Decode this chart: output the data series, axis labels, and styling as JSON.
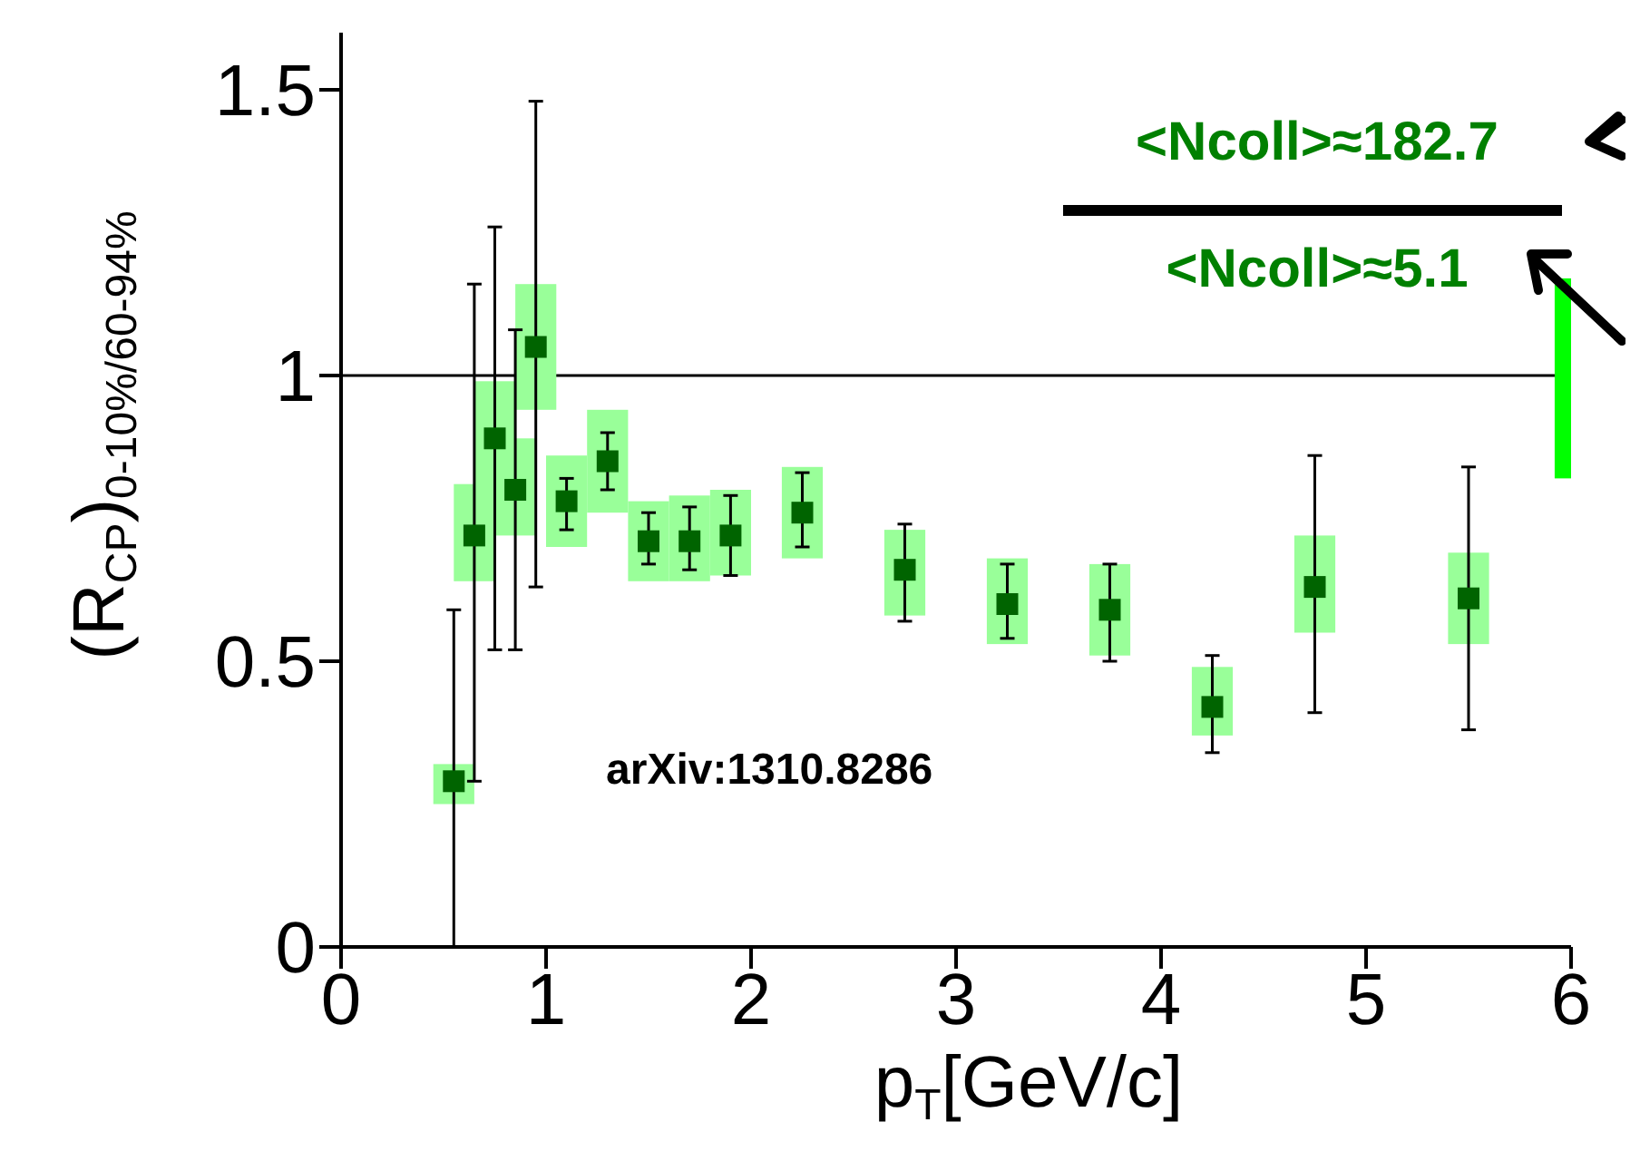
{
  "chart_data": {
    "type": "scatter",
    "xlabel": "p$_{T}$[GeV/c]",
    "ylabel": "(R$_{CP}$)$_{0-10%/60-94%}$",
    "x": [
      0.55,
      0.65,
      0.75,
      0.85,
      0.95,
      1.1,
      1.3,
      1.5,
      1.7,
      1.9,
      2.25,
      2.75,
      3.25,
      3.75,
      4.25,
      4.75,
      5.5
    ],
    "series": [
      {
        "type": "bar",
        "color": "#99ff99",
        "base": [
          0.25,
          0.64,
          0.8,
          0.72,
          0.94,
          0.7,
          0.76,
          0.64,
          0.64,
          0.65,
          0.68,
          0.58,
          0.53,
          0.51,
          0.37,
          0.55,
          0.53
        ],
        "values": [
          0.07,
          0.17,
          0.19,
          0.17,
          0.22,
          0.16,
          0.18,
          0.14,
          0.15,
          0.15,
          0.16,
          0.15,
          0.15,
          0.16,
          0.12,
          0.17,
          0.16
        ]
      },
      {
        "type": "bar",
        "color": "#00ff00",
        "x": [
          5.96
        ],
        "base": [
          0.82
        ],
        "values": [
          0.35
        ]
      },
      {
        "color": "#006400",
        "values": [
          0.29,
          0.72,
          0.89,
          0.8,
          1.05,
          0.78,
          0.85,
          0.71,
          0.71,
          0.72,
          0.76,
          0.66,
          0.6,
          0.59,
          0.42,
          0.63,
          0.61
        ],
        "errors": [
          [
            0,
            0.59
          ],
          [
            0.29,
            1.16
          ],
          [
            0.52,
            1.26
          ],
          [
            0.52,
            1.08
          ],
          [
            0.63,
            1.48
          ],
          [
            0.73,
            0.82
          ],
          [
            0.8,
            0.9
          ],
          [
            0.67,
            0.76
          ],
          [
            0.66,
            0.77
          ],
          [
            0.65,
            0.79
          ],
          [
            0.7,
            0.83
          ],
          [
            0.57,
            0.74
          ],
          [
            0.54,
            0.67
          ],
          [
            0.5,
            0.67
          ],
          [
            0.34,
            0.51
          ],
          [
            0.41,
            0.86
          ],
          [
            0.38,
            0.84
          ]
        ]
      }
    ],
    "marker": "square",
    "xlim": [
      0,
      6
    ],
    "ylim": [
      0,
      1.6
    ],
    "xticks": [
      0,
      1,
      2,
      3,
      4,
      5,
      6
    ],
    "yticks": [
      0,
      0.5,
      1,
      1.5
    ],
    "ref_lines": [
      {
        "axis": "y",
        "value": 1,
        "color": "#000000"
      }
    ],
    "annotations": [
      "arXiv:1310.8286",
      "<Ncoll>≈182.7",
      "<Ncoll>≈5.1"
    ]
  }
}
